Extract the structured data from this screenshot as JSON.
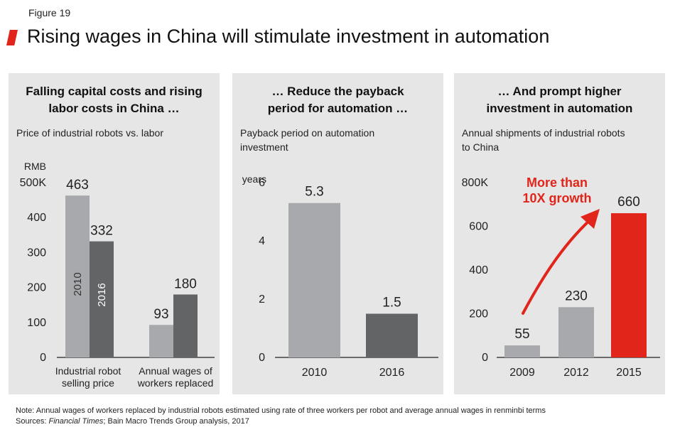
{
  "figure_label": "Figure 19",
  "title": "Rising wages in China will stimulate investment in automation",
  "colors": {
    "accent": "#e1251b",
    "light_bar": "#a7a9ac",
    "dark_bar": "#636466",
    "panel_bg": "#e6e6e6"
  },
  "panels": [
    {
      "title_lines": [
        "Falling capital costs and rising",
        "labor costs in China …"
      ],
      "subtitle_lines": [
        "Price of industrial robots vs. labor"
      ]
    },
    {
      "title_lines": [
        "… Reduce the payback",
        "period for automation …"
      ],
      "subtitle_lines": [
        "Payback period on automation",
        "investment"
      ]
    },
    {
      "title_lines": [
        "… And prompt higher",
        "investment in automation"
      ],
      "subtitle_lines": [
        "Annual shipments of industrial robots",
        "to China"
      ]
    }
  ],
  "chart_data": [
    {
      "type": "bar",
      "unit_label": "RMB",
      "ylim": [
        0,
        500
      ],
      "yticks": [
        0,
        100,
        200,
        300,
        400,
        500
      ],
      "ytick_labels": [
        "0",
        "100",
        "200",
        "300",
        "400",
        "500K"
      ],
      "categories": [
        [
          "Industrial robot",
          "selling price"
        ],
        [
          "Annual wages of",
          "workers replaced"
        ]
      ],
      "series": [
        {
          "name": "2010",
          "values": [
            463,
            93
          ],
          "color": "#a7a9ac"
        },
        {
          "name": "2016",
          "values": [
            332,
            180
          ],
          "color": "#636466"
        }
      ]
    },
    {
      "type": "bar",
      "unit_label": "years",
      "ylim": [
        0,
        6
      ],
      "yticks": [
        0,
        2,
        4,
        6
      ],
      "ytick_labels": [
        "0",
        "2",
        "4",
        "6"
      ],
      "categories": [
        "2010",
        "2016"
      ],
      "values": [
        5.3,
        1.5
      ],
      "value_labels": [
        "5.3",
        "1.5"
      ],
      "colors": [
        "#a7a9ac",
        "#636466"
      ]
    },
    {
      "type": "bar",
      "ylim": [
        0,
        800
      ],
      "yticks": [
        0,
        200,
        400,
        600,
        800
      ],
      "ytick_labels": [
        "0",
        "200",
        "400",
        "600",
        "800K"
      ],
      "categories": [
        "2009",
        "2012",
        "2015"
      ],
      "values": [
        55,
        230,
        660
      ],
      "colors": [
        "#a7a9ac",
        "#a7a9ac",
        "#e1251b"
      ],
      "annotation_lines": [
        "More than",
        "10X growth"
      ]
    }
  ],
  "note_prefix": "Note: ",
  "note": "Annual wages of workers replaced by industrial robots estimated using rate of three workers per robot and average annual wages in renminbi terms",
  "sources_prefix": "Sources: ",
  "sources_italic": "Financial Times",
  "sources_rest": "; Bain Macro Trends Group analysis, 2017"
}
